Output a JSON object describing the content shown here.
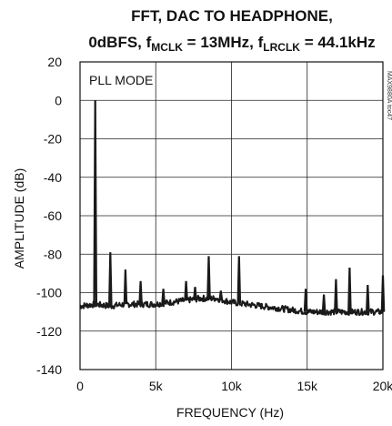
{
  "chart_data": {
    "type": "line",
    "title_line1": "FFT, DAC TO HEADPHONE,",
    "title_line2_a": "0dBFS, f",
    "title_line2_sub1": "MCLK",
    "title_line2_b": " = 13MHz, f",
    "title_line2_sub2": "LRCLK",
    "title_line2_c": " = 44.1kHz",
    "xlabel": "FREQUENCY (Hz)",
    "ylabel": "AMPLITUDE (dB)",
    "annotation": "PLL MODE",
    "side_text": "MAX9880A toc47",
    "xlim": [
      0,
      20000
    ],
    "ylim": [
      -140,
      20
    ],
    "grid": true,
    "x_ticks": [
      {
        "value": 0,
        "label": "0"
      },
      {
        "value": 5000,
        "label": "5k"
      },
      {
        "value": 10000,
        "label": "10k"
      },
      {
        "value": 15000,
        "label": "15k"
      },
      {
        "value": 20000,
        "label": "20k"
      }
    ],
    "y_ticks": [
      {
        "value": 20,
        "label": "20"
      },
      {
        "value": 0,
        "label": "0"
      },
      {
        "value": -20,
        "label": "-20"
      },
      {
        "value": -40,
        "label": "-40"
      },
      {
        "value": -60,
        "label": "-60"
      },
      {
        "value": -80,
        "label": "-80"
      },
      {
        "value": -100,
        "label": "-100"
      },
      {
        "value": -120,
        "label": "-120"
      },
      {
        "value": -140,
        "label": "-140"
      }
    ],
    "series": [
      {
        "color": "#1a1a1a",
        "noise_floor": [
          [
            0,
            -107
          ],
          [
            1000,
            -106
          ],
          [
            2000,
            -107
          ],
          [
            3000,
            -106
          ],
          [
            4000,
            -106
          ],
          [
            5000,
            -106
          ],
          [
            6000,
            -105
          ],
          [
            7000,
            -104
          ],
          [
            8000,
            -103
          ],
          [
            9000,
            -103
          ],
          [
            10000,
            -105
          ],
          [
            11000,
            -106
          ],
          [
            12000,
            -107
          ],
          [
            13000,
            -108
          ],
          [
            14000,
            -109
          ],
          [
            15000,
            -110
          ],
          [
            16000,
            -110
          ],
          [
            17000,
            -110
          ],
          [
            18000,
            -110
          ],
          [
            19000,
            -110
          ],
          [
            20000,
            -110
          ]
        ],
        "peaks": [
          {
            "x": 1000,
            "y": 0
          },
          {
            "x": 2000,
            "y": -79
          },
          {
            "x": 3000,
            "y": -88
          },
          {
            "x": 4000,
            "y": -94
          },
          {
            "x": 5500,
            "y": -98
          },
          {
            "x": 7000,
            "y": -94
          },
          {
            "x": 7600,
            "y": -97
          },
          {
            "x": 8500,
            "y": -81
          },
          {
            "x": 9300,
            "y": -99
          },
          {
            "x": 10500,
            "y": -81
          },
          {
            "x": 14900,
            "y": -98
          },
          {
            "x": 16100,
            "y": -101
          },
          {
            "x": 16900,
            "y": -93
          },
          {
            "x": 17800,
            "y": -87
          },
          {
            "x": 19000,
            "y": -96
          },
          {
            "x": 20000,
            "y": -91
          }
        ]
      }
    ]
  }
}
